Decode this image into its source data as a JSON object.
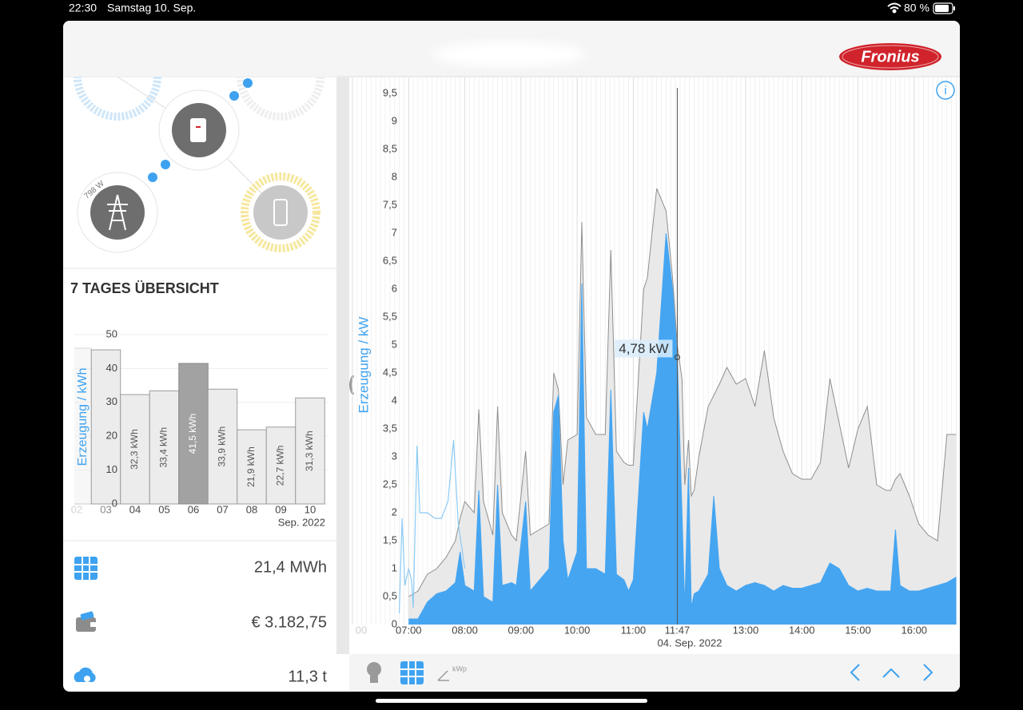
{
  "status_bar": {
    "time": "22:30",
    "date": "Samstag 10. Sep.",
    "battery": "80 %"
  },
  "header": {
    "logo": "Fronius"
  },
  "flow": {
    "grid_power": "798 W"
  },
  "overview": {
    "title": "7 TAGES ÜBERSICHT"
  },
  "stats": [
    {
      "value": "21,4 MWh"
    },
    {
      "value": "€ 3.182,75"
    },
    {
      "value": "11,3 t"
    }
  ],
  "toolbar": {
    "kwp": "kWp"
  },
  "chart_data": [
    {
      "type": "bar",
      "ylabel": "Erzeugung / kWh",
      "xlabel": "Sep. 2022",
      "categories": [
        "02",
        "03",
        "04",
        "05",
        "06",
        "07",
        "08",
        "09",
        "10"
      ],
      "values": [
        46,
        45.5,
        32.3,
        33.4,
        41.5,
        33.9,
        21.9,
        22.7,
        31.3
      ],
      "value_labels": [
        null,
        null,
        "32,3 kWh",
        "33,4 kWh",
        "41,5 kWh",
        "33,9 kWh",
        "21,9 kWh",
        "22,7 kWh",
        "31,3 kWh"
      ],
      "color": "#ececec",
      "highlight_category": "06",
      "highlight_color": "#a2a2a2",
      "ylim": [
        0,
        50
      ],
      "yticks": [
        0,
        10,
        20,
        30,
        40,
        50
      ],
      "grid": true
    },
    {
      "type": "area",
      "ylabel": "Erzeugung / kW",
      "xlabel": "04. Sep. 2022",
      "xlim": [
        "06:00",
        "16:48"
      ],
      "xticks": [
        {
          "value": "06:00",
          "label": "00"
        },
        "07:00",
        "08:00",
        "09:00",
        "10:00",
        "11:00",
        "13:00",
        "14:00",
        "15:00",
        "16:00"
      ],
      "ylim": [
        0,
        9.5
      ],
      "yticks": [
        0,
        {
          "value": 0.5,
          "label": "0,5"
        },
        1,
        {
          "value": 1.5,
          "label": "1,5"
        },
        2,
        {
          "value": 2.5,
          "label": "2,5"
        },
        3,
        {
          "value": 3.5,
          "label": "3,5"
        },
        4,
        {
          "value": 4.5,
          "label": "4,5"
        },
        5,
        {
          "value": 5.5,
          "label": "5,5"
        },
        6,
        {
          "value": 6.5,
          "label": "6,5"
        },
        7,
        {
          "value": 7.5,
          "label": "7,5"
        },
        8,
        {
          "value": 8.5,
          "label": "8,5"
        },
        9,
        {
          "value": 9.5,
          "label": "9,5"
        }
      ],
      "grid": true,
      "x": [
        "07:00",
        "07:10",
        "07:20",
        "07:30",
        "07:40",
        "07:50",
        "07:55",
        "08:00",
        "08:10",
        "08:15",
        "08:20",
        "08:30",
        "08:35",
        "08:40",
        "08:50",
        "08:55",
        "09:05",
        "09:10",
        "09:20",
        "09:30",
        "09:35",
        "09:40",
        "09:45",
        "09:50",
        "10:00",
        "10:05",
        "10:10",
        "10:20",
        "10:30",
        "10:36",
        "10:42",
        "10:50",
        "10:55",
        "11:00",
        "11:11",
        "11:15",
        "11:25",
        "11:35",
        "11:42",
        "11:47",
        "11:52",
        "11:55",
        "11:59",
        "12:02",
        "12:05",
        "12:10",
        "12:20",
        "12:26",
        "12:32",
        "12:40",
        "12:50",
        "13:00",
        "13:10",
        "13:20",
        "13:30",
        "13:40",
        "13:50",
        "14:00",
        "14:10",
        "14:20",
        "14:30",
        "14:40",
        "14:50",
        "15:00",
        "15:10",
        "15:20",
        "15:30",
        "15:35",
        "15:40",
        "15:45",
        "15:55",
        "16:05",
        "16:15",
        "16:25",
        "16:35",
        "16:45"
      ],
      "series": [
        {
          "color": "#e9e9e9",
          "line_color": "#8f8f8f",
          "values": [
            0.5,
            0.6,
            0.9,
            1.0,
            1.2,
            1.5,
            1.9,
            2.2,
            2.0,
            3.85,
            2.2,
            1.6,
            3.9,
            2.0,
            1.6,
            1.5,
            3.1,
            1.6,
            1.7,
            1.8,
            4.5,
            4.2,
            2.5,
            3.3,
            3.4,
            7.2,
            3.7,
            3.4,
            3.4,
            6.7,
            3.1,
            2.9,
            2.85,
            2.85,
            6.0,
            6.2,
            7.8,
            7.4,
            6.2,
            5.0,
            4.4,
            2.5,
            3.3,
            2.3,
            2.4,
            3.0,
            3.9,
            4.1,
            4.3,
            4.6,
            4.3,
            4.4,
            3.9,
            4.9,
            3.7,
            3.1,
            2.7,
            2.6,
            2.6,
            2.9,
            4.4,
            3.6,
            2.8,
            3.5,
            3.9,
            2.5,
            2.4,
            2.4,
            2.6,
            2.7,
            2.3,
            1.8,
            1.6,
            1.5,
            3.4,
            3.4
          ]
        },
        {
          "color": "#45a5f1",
          "line_color": "#45a5f1",
          "values": [
            0.1,
            0.1,
            0.4,
            0.55,
            0.6,
            0.75,
            1.3,
            0.7,
            0.6,
            2.4,
            0.5,
            0.4,
            2.5,
            0.7,
            0.75,
            0.7,
            2.2,
            0.6,
            0.8,
            1.0,
            3.8,
            4.1,
            1.5,
            0.8,
            1.3,
            6.1,
            1.0,
            1.0,
            0.9,
            4.2,
            0.9,
            0.8,
            0.6,
            0.8,
            3.8,
            3.5,
            4.5,
            7.0,
            6.0,
            4.78,
            2.0,
            0.3,
            2.8,
            0.3,
            0.55,
            0.6,
            0.9,
            2.3,
            1.0,
            0.7,
            0.6,
            0.7,
            0.75,
            0.7,
            0.6,
            0.7,
            0.65,
            0.65,
            0.7,
            0.75,
            1.1,
            1.0,
            0.7,
            0.6,
            0.65,
            0.6,
            0.6,
            0.6,
            1.7,
            0.7,
            0.6,
            0.6,
            0.65,
            0.7,
            0.75,
            0.85
          ]
        },
        {
          "color": "#8ccbf5",
          "style": "line",
          "x": [
            "06:50",
            "06:53",
            "06:56",
            "07:00",
            "07:03",
            "07:05",
            "07:09",
            "07:12",
            "07:20",
            "07:28",
            "07:35",
            "07:42",
            "07:48",
            "07:53",
            "08:00"
          ],
          "values": [
            0.2,
            1.9,
            0.7,
            1.0,
            0.8,
            0.3,
            3.2,
            2.0,
            2.0,
            1.9,
            1.9,
            2.2,
            3.3,
            1.8,
            1.0
          ]
        }
      ],
      "cursor": {
        "x": "11:47",
        "value": 4.78,
        "value_label": "4,78 kW"
      }
    }
  ]
}
